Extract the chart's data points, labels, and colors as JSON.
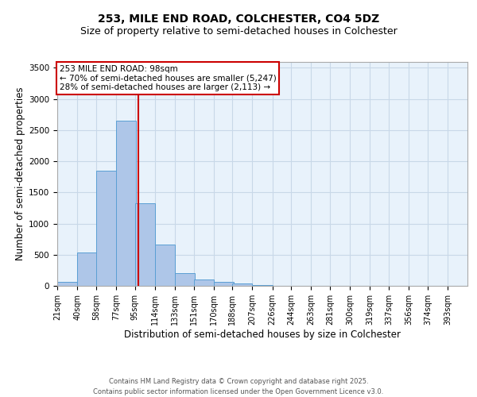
{
  "title_line1": "253, MILE END ROAD, COLCHESTER, CO4 5DZ",
  "title_line2": "Size of property relative to semi-detached houses in Colchester",
  "xlabel": "Distribution of semi-detached houses by size in Colchester",
  "ylabel": "Number of semi-detached properties",
  "bar_left_edges": [
    21,
    40,
    58,
    77,
    95,
    114,
    133,
    151,
    170,
    188,
    207,
    226,
    244,
    263,
    281,
    300,
    319,
    337,
    356,
    374
  ],
  "bar_heights": [
    70,
    530,
    1850,
    2650,
    1330,
    660,
    210,
    100,
    65,
    35,
    15,
    5,
    5,
    5,
    2,
    2,
    2,
    2,
    2,
    2
  ],
  "bin_width": 19,
  "bar_color": "#aec6e8",
  "bar_edge_color": "#5a9fd4",
  "vline_x": 98,
  "vline_color": "#cc0000",
  "annotation_text": "253 MILE END ROAD: 98sqm\n← 70% of semi-detached houses are smaller (5,247)\n28% of semi-detached houses are larger (2,113) →",
  "annotation_box_color": "white",
  "annotation_box_edge": "#cc0000",
  "ylim": [
    0,
    3600
  ],
  "xlim": [
    21,
    412
  ],
  "tick_labels": [
    "21sqm",
    "40sqm",
    "58sqm",
    "77sqm",
    "95sqm",
    "114sqm",
    "133sqm",
    "151sqm",
    "170sqm",
    "188sqm",
    "207sqm",
    "226sqm",
    "244sqm",
    "263sqm",
    "281sqm",
    "300sqm",
    "319sqm",
    "337sqm",
    "356sqm",
    "374sqm",
    "393sqm"
  ],
  "tick_positions": [
    21,
    40,
    58,
    77,
    95,
    114,
    133,
    151,
    170,
    188,
    207,
    226,
    244,
    263,
    281,
    300,
    319,
    337,
    356,
    374,
    393
  ],
  "yticks": [
    0,
    500,
    1000,
    1500,
    2000,
    2500,
    3000,
    3500
  ],
  "grid_color": "#c8d8e8",
  "bg_color": "#e8f2fb",
  "footer_text": "Contains HM Land Registry data © Crown copyright and database right 2025.\nContains public sector information licensed under the Open Government Licence v3.0.",
  "title_fontsize": 10,
  "subtitle_fontsize": 9,
  "axis_label_fontsize": 8.5,
  "tick_fontsize": 7,
  "annotation_fontsize": 7.5,
  "footer_fontsize": 6
}
